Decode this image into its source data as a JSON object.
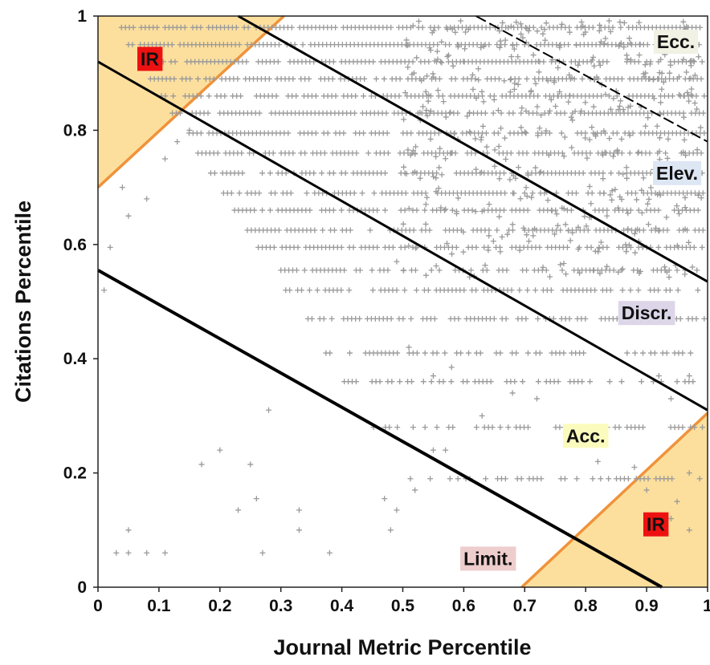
{
  "chart_data": {
    "type": "scatter",
    "xlabel": "Journal Metric Percentile",
    "ylabel": "Citations Percentile",
    "xlim": [
      0,
      1
    ],
    "ylim": [
      0,
      1
    ],
    "x_ticks": [
      "0",
      "0.1",
      "0.2",
      "0.3",
      "0.4",
      "0.5",
      "0.6",
      "0.7",
      "0.8",
      "0.9",
      "1"
    ],
    "y_ticks": [
      "0",
      "0.2",
      "0.4",
      "0.6",
      "0.8",
      "1"
    ],
    "grid": false,
    "marker": "+",
    "marker_color": "#9a9a9a",
    "citation_levels": [
      0.19,
      0.28,
      0.36,
      0.41,
      0.47,
      0.52,
      0.555,
      0.595,
      0.625,
      0.66,
      0.69,
      0.725,
      0.76,
      0.795,
      0.83,
      0.86,
      0.89,
      0.92,
      0.95,
      0.98
    ],
    "sparse_points": [
      [
        0.03,
        0.06
      ],
      [
        0.05,
        0.06
      ],
      [
        0.08,
        0.06
      ],
      [
        0.11,
        0.06
      ],
      [
        0.05,
        0.1
      ],
      [
        0.27,
        0.06
      ],
      [
        0.38,
        0.06
      ],
      [
        0.23,
        0.135
      ],
      [
        0.26,
        0.155
      ],
      [
        0.33,
        0.135
      ],
      [
        0.33,
        0.1
      ],
      [
        0.47,
        0.155
      ],
      [
        0.49,
        0.135
      ],
      [
        0.48,
        0.1
      ],
      [
        0.52,
        0.17
      ],
      [
        0.17,
        0.215
      ],
      [
        0.2,
        0.24
      ],
      [
        0.25,
        0.215
      ],
      [
        0.55,
        0.24
      ],
      [
        0.57,
        0.24
      ],
      [
        0.63,
        0.3
      ],
      [
        0.28,
        0.31
      ],
      [
        0.55,
        0.37
      ],
      [
        0.58,
        0.385
      ],
      [
        0.51,
        0.42
      ],
      [
        0.68,
        0.34
      ],
      [
        0.72,
        0.33
      ],
      [
        0.92,
        0.37
      ],
      [
        0.94,
        0.33
      ],
      [
        0.97,
        0.37
      ],
      [
        0.9,
        0.17
      ],
      [
        0.95,
        0.15
      ],
      [
        0.97,
        0.1
      ],
      [
        0.94,
        0.12
      ],
      [
        0.82,
        0.22
      ],
      [
        0.97,
        0.2
      ],
      [
        0.88,
        0.21
      ],
      [
        0.04,
        0.7
      ],
      [
        0.08,
        0.68
      ],
      [
        0.05,
        0.65
      ],
      [
        0.11,
        0.75
      ],
      [
        0.13,
        0.78
      ],
      [
        0.15,
        0.8
      ],
      [
        0.02,
        0.595
      ],
      [
        0.01,
        0.52
      ],
      [
        0.49,
        0.57
      ],
      [
        0.73,
        0.56
      ],
      [
        0.79,
        0.55
      ]
    ],
    "boundary_lines": [
      {
        "from": [
          0,
          0.555
        ],
        "to": [
          0.925,
          0
        ],
        "width": 4
      },
      {
        "from": [
          0,
          0.92
        ],
        "to": [
          1,
          0.31
        ],
        "width": 3
      },
      {
        "from": [
          0.23,
          1
        ],
        "to": [
          1,
          0.535
        ],
        "width": 3
      },
      {
        "from": [
          0.62,
          1
        ],
        "to": [
          1,
          0.78
        ],
        "width": 2,
        "dashed": true
      }
    ],
    "regions": [
      {
        "polygon": [
          [
            0,
            0.7
          ],
          [
            0,
            1
          ],
          [
            0.305,
            1
          ]
        ],
        "fill": "#fbd98c",
        "edge": "#f0923a"
      },
      {
        "polygon": [
          [
            0.695,
            0
          ],
          [
            1,
            0
          ],
          [
            1,
            0.305
          ]
        ],
        "fill": "#fbd98c",
        "edge": "#f0923a"
      }
    ],
    "annotations": [
      {
        "text": "IR",
        "x": 0.085,
        "y": 0.925,
        "bg": "#ee1111"
      },
      {
        "text": "IR",
        "x": 0.915,
        "y": 0.11,
        "bg": "#ee1111"
      },
      {
        "text": "Ecc.",
        "x": 0.948,
        "y": 0.955,
        "bg": "#f1f1e4"
      },
      {
        "text": "Elev.",
        "x": 0.95,
        "y": 0.725,
        "bg": "#dde6f3"
      },
      {
        "text": "Discr.",
        "x": 0.9,
        "y": 0.48,
        "bg": "#ddd5e8"
      },
      {
        "text": "Acc.",
        "x": 0.8,
        "y": 0.265,
        "bg": "#fbfbbe"
      },
      {
        "text": "Limit.",
        "x": 0.64,
        "y": 0.05,
        "bg": "#eecdcd"
      }
    ]
  }
}
